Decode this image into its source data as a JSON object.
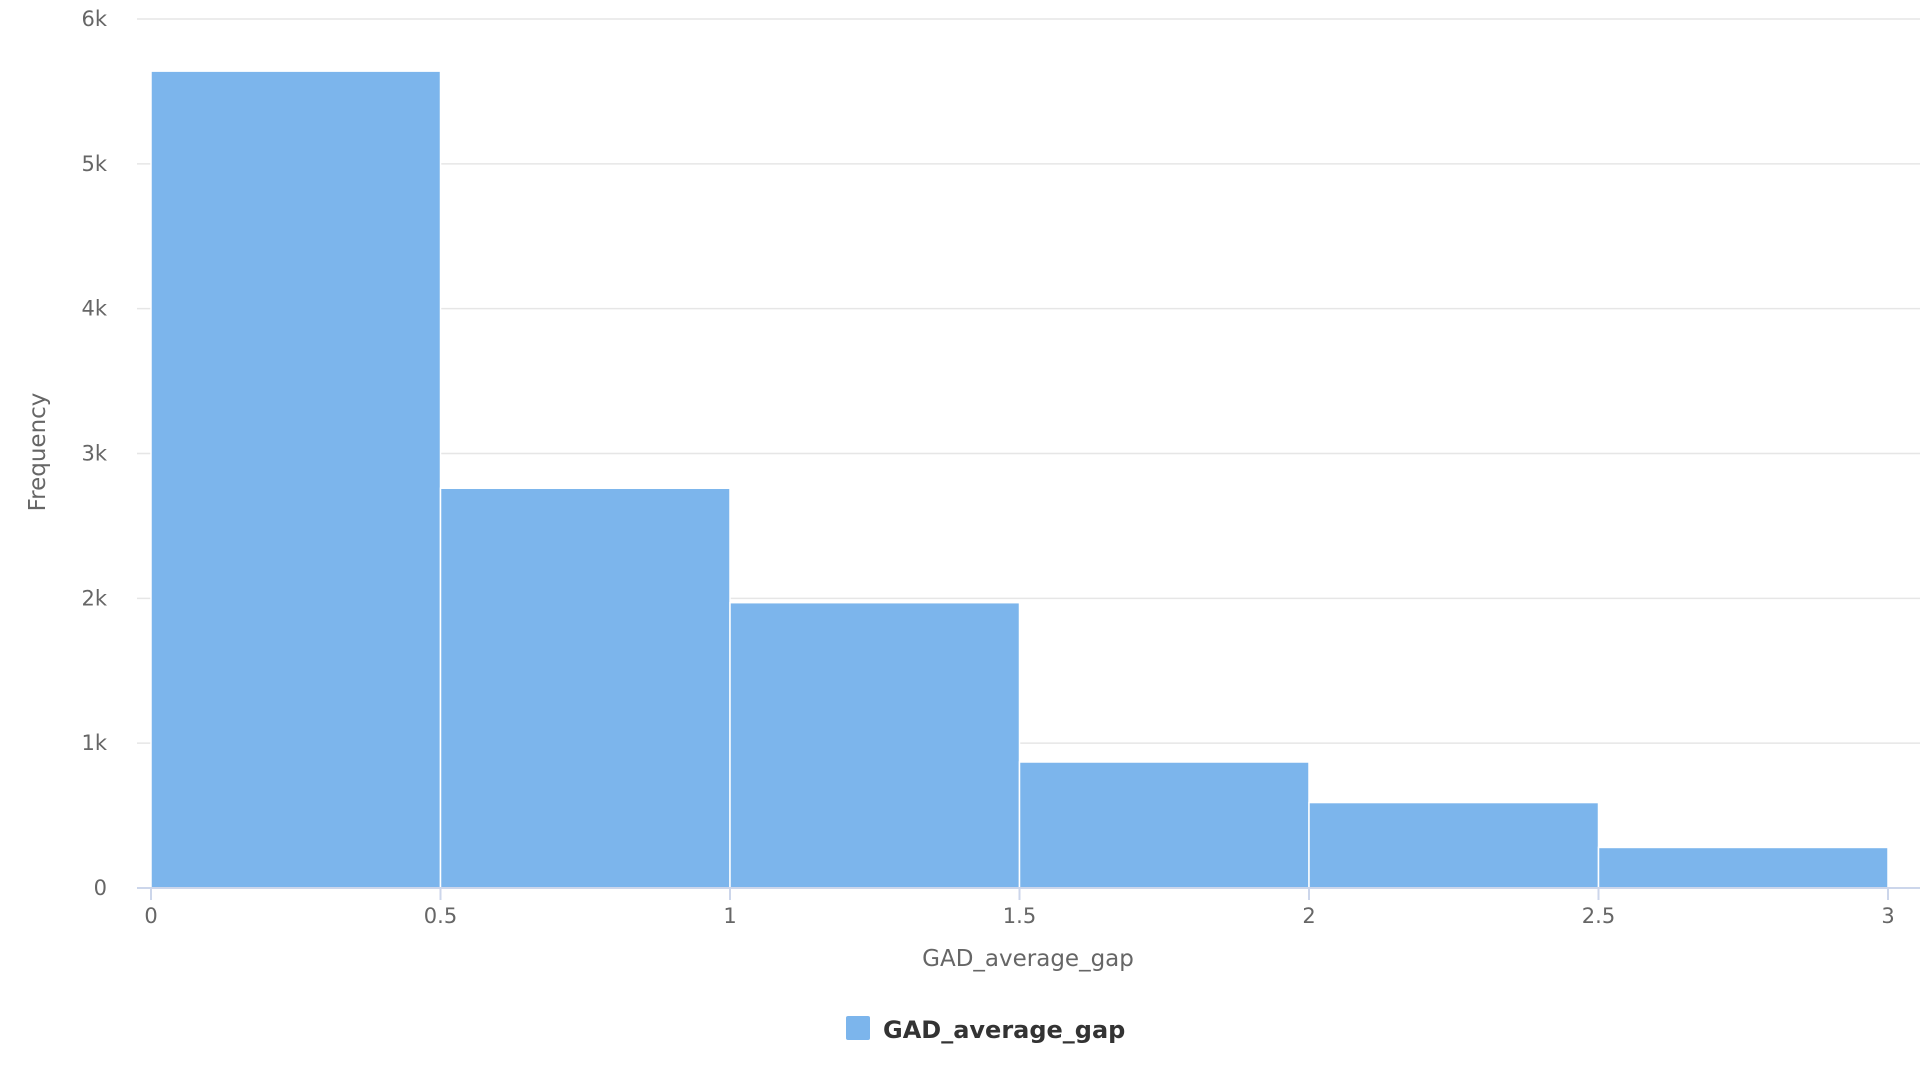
{
  "chart_data": {
    "type": "bar",
    "bins": [
      {
        "from": 0,
        "to": 0.5,
        "value": 5640
      },
      {
        "from": 0.5,
        "to": 1,
        "value": 2760
      },
      {
        "from": 1,
        "to": 1.5,
        "value": 1970
      },
      {
        "from": 1.5,
        "to": 2,
        "value": 870
      },
      {
        "from": 2,
        "to": 2.5,
        "value": 590
      },
      {
        "from": 2.5,
        "to": 3,
        "value": 280
      }
    ],
    "series": [
      {
        "name": "GAD_average_gap"
      }
    ],
    "xlabel": "GAD_average_gap",
    "ylabel": "Frequency",
    "xlim": [
      0,
      3
    ],
    "ylim": [
      0,
      6000
    ],
    "x_ticks": [
      "0",
      "0.5",
      "1",
      "1.5",
      "2",
      "2.5",
      "3"
    ],
    "y_ticks": [
      "0",
      "1k",
      "2k",
      "3k",
      "4k",
      "5k",
      "6k"
    ],
    "grid": "horizontal",
    "legend_position": "bottom-center",
    "colors": {
      "bar": "#7cb5ec",
      "grid": "#e6e6e6",
      "axis": "#ccd6eb",
      "text": "#666666"
    }
  }
}
